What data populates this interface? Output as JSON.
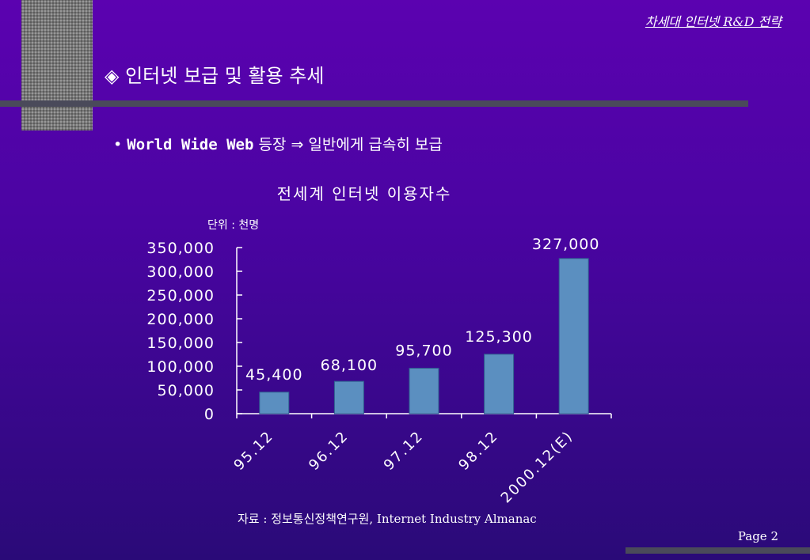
{
  "header": {
    "title": "차세대 인터넷 R&D 전략"
  },
  "slide": {
    "title": "◈ 인터넷 보급 및 활용 추세",
    "bullet_mark": "•",
    "bullet_mono": "World Wide Web",
    "bullet_rest": " 등장 ⇒ 일반에게 급속히 보급"
  },
  "chart_data": {
    "type": "bar",
    "title": "전세계 인터넷 이용자수",
    "unit_label": "단위 : 천명",
    "categories": [
      "95.12",
      "96.12",
      "97.12",
      "98.12",
      "2000.12(E)"
    ],
    "values": [
      45400,
      68100,
      95700,
      125300,
      327000
    ],
    "data_labels": [
      "45,400",
      "68,100",
      "95,700",
      "125,300",
      "327,000"
    ],
    "ylim": [
      0,
      350000
    ],
    "y_ticks": [
      "0",
      "50,000",
      "100,000",
      "150,000",
      "200,000",
      "250,000",
      "300,000",
      "350,000"
    ],
    "bar_color": "#5b8fc0",
    "grid": false
  },
  "footer": {
    "source": "자료 : 정보통신정책연구원, Internet Industry Almanac",
    "page": "Page 2"
  }
}
